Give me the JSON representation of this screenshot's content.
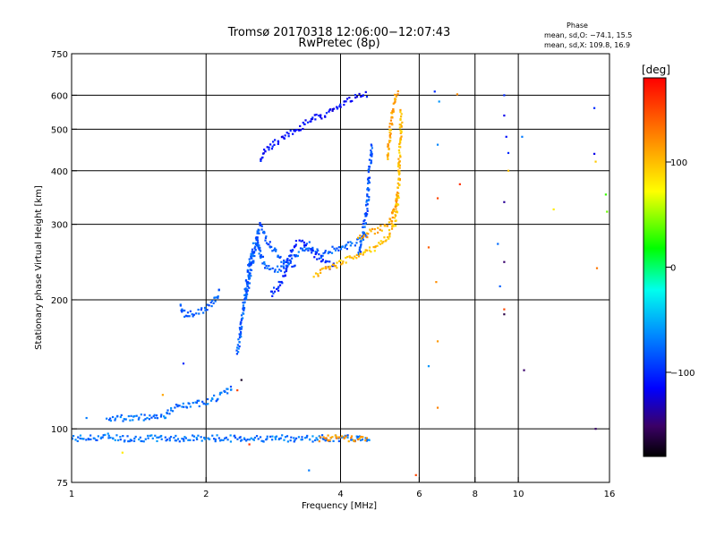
{
  "chart_data": {
    "type": "scatter",
    "title": "Tromsø 20170318 12:06:00−12:07:43",
    "subtitle": "RwPretec (8p)",
    "phase_info": {
      "heading": "Phase",
      "line_o": "mean, sd,O: −74.1, 15.5",
      "line_x": "mean, sd,X: 109.8, 16.9"
    },
    "xlabel": "Frequency [MHz]",
    "ylabel": "Stationary phase Virtual Height [km]",
    "x_scale": "log",
    "y_scale": "log",
    "xlim": [
      1,
      16
    ],
    "ylim": [
      75,
      750
    ],
    "x_ticks": [
      1,
      2,
      4,
      6,
      8,
      10,
      16
    ],
    "x_tick_labels": [
      "1",
      "2",
      "4",
      "6",
      "8",
      "10",
      "16"
    ],
    "x_grid": [
      2,
      4,
      6,
      8,
      10
    ],
    "y_ticks": [
      75,
      100,
      200,
      300,
      400,
      500,
      600,
      750
    ],
    "y_tick_labels": [
      "75",
      "100",
      "200",
      "300",
      "400",
      "500",
      "600",
      "750"
    ],
    "y_grid": [
      100,
      200,
      300,
      400,
      500,
      600
    ],
    "colorbar": {
      "label": "[deg]",
      "range": [
        -180,
        180
      ],
      "ticks": [
        100,
        0,
        -100
      ],
      "tick_labels": [
        "100",
        "0",
        "−100"
      ],
      "colormap": "rainbow"
    },
    "traces": [
      {
        "kind": "trace",
        "phase": -72,
        "x": [
          1.0,
          1.1,
          1.2,
          1.3,
          1.4,
          1.5,
          1.6,
          1.7,
          1.8,
          1.9,
          2.0,
          2.2,
          2.4,
          2.6,
          2.8,
          3.0,
          3.2,
          3.4,
          3.6,
          3.8,
          4.0,
          4.2,
          4.4,
          4.6,
          4.7
        ],
        "y": [
          95,
          95,
          96,
          95,
          95,
          95,
          95,
          95,
          95,
          95,
          95,
          95,
          95,
          95,
          95,
          95,
          95,
          95,
          95,
          95,
          95,
          95,
          95,
          95,
          95
        ]
      },
      {
        "kind": "trace",
        "phase": -74,
        "x": [
          1.2,
          1.3,
          1.4,
          1.5,
          1.6,
          1.65,
          1.7,
          1.8,
          1.9,
          2.0,
          2.1,
          2.2,
          2.3
        ],
        "y": [
          106,
          106,
          106,
          107,
          107,
          109,
          112,
          113,
          114,
          116,
          118,
          121,
          126
        ]
      },
      {
        "kind": "trace",
        "phase": -80,
        "x": [
          2.35,
          2.4,
          2.45,
          2.5,
          2.55,
          2.6,
          2.65,
          2.7,
          2.8,
          2.9,
          3.0,
          3.1,
          3.2,
          3.3,
          3.4,
          3.5,
          3.6,
          3.7,
          3.8,
          3.9,
          4.0,
          4.1,
          4.2,
          4.3,
          4.4,
          4.5,
          4.6
        ],
        "y": [
          150,
          175,
          205,
          240,
          265,
          278,
          255,
          242,
          236,
          235,
          240,
          248,
          255,
          262,
          268,
          262,
          255,
          258,
          262,
          260,
          262,
          265,
          270,
          272,
          275,
          280,
          285
        ]
      },
      {
        "kind": "trace",
        "phase": -85,
        "x": [
          2.45,
          2.5,
          2.55,
          2.6,
          2.65,
          2.7,
          2.8,
          2.9,
          3.0,
          3.1,
          3.2
        ],
        "y": [
          200,
          225,
          250,
          280,
          300,
          285,
          265,
          255,
          245,
          240,
          238
        ]
      },
      {
        "kind": "trace",
        "phase": -100,
        "x": [
          2.8,
          2.9,
          3.0,
          3.05,
          3.1,
          3.2,
          3.3,
          3.4,
          3.5,
          3.6,
          3.7,
          3.8,
          3.9
        ],
        "y": [
          205,
          215,
          230,
          245,
          260,
          270,
          272,
          265,
          255,
          250,
          245,
          240,
          240
        ]
      },
      {
        "kind": "trace",
        "phase": -112,
        "x": [
          2.65,
          2.7,
          2.8,
          2.9,
          3.0,
          3.1,
          3.2,
          3.3,
          3.4,
          3.5,
          3.6,
          3.7,
          3.8,
          3.9,
          4.0,
          4.1,
          4.2,
          4.3,
          4.4,
          4.5,
          4.6
        ],
        "y": [
          420,
          440,
          455,
          470,
          480,
          490,
          500,
          510,
          520,
          530,
          535,
          540,
          550,
          560,
          565,
          575,
          585,
          590,
          595,
          600,
          605
        ]
      },
      {
        "kind": "trace",
        "phase": -84,
        "x": [
          4.4,
          4.45,
          4.5,
          4.55,
          4.6,
          4.62,
          4.65,
          4.68,
          4.7
        ],
        "y": [
          255,
          270,
          290,
          310,
          340,
          370,
          400,
          430,
          460
        ]
      },
      {
        "kind": "trace",
        "phase": -82,
        "x": [
          1.75,
          1.8,
          1.85,
          1.9,
          2.0,
          2.1,
          2.15
        ],
        "y": [
          195,
          185,
          185,
          187,
          190,
          200,
          210
        ]
      },
      {
        "kind": "trace",
        "phase": 100,
        "x": [
          3.5,
          3.7,
          3.9,
          4.1,
          4.3,
          4.5,
          4.7,
          4.9,
          5.1,
          5.2,
          5.3,
          5.35,
          5.4,
          5.42,
          5.45,
          5.47
        ],
        "y": [
          228,
          235,
          240,
          248,
          252,
          258,
          262,
          270,
          280,
          292,
          305,
          330,
          370,
          420,
          480,
          550
        ]
      },
      {
        "kind": "trace",
        "phase": 110,
        "x": [
          4.4,
          4.6,
          4.8,
          5.0,
          5.1,
          5.2,
          5.3,
          5.35
        ],
        "y": [
          280,
          285,
          290,
          295,
          300,
          310,
          330,
          360
        ]
      },
      {
        "kind": "trace",
        "phase": 115,
        "x": [
          3.6,
          3.7,
          3.8,
          3.9,
          4.0,
          4.1,
          4.2,
          4.3,
          4.4,
          4.5,
          4.6
        ],
        "y": [
          95,
          95,
          95,
          95,
          95,
          95,
          95,
          95,
          95,
          95,
          95
        ]
      },
      {
        "kind": "trace",
        "phase": 110,
        "x": [
          5.1,
          5.15,
          5.2,
          5.25,
          5.3,
          5.35,
          5.4
        ],
        "y": [
          430,
          470,
          520,
          560,
          590,
          610,
          620
        ]
      }
    ],
    "points": [
      {
        "x": 1.08,
        "y": 106,
        "phase": -70
      },
      {
        "x": 1.3,
        "y": 88,
        "phase": 80
      },
      {
        "x": 1.6,
        "y": 120,
        "phase": 110
      },
      {
        "x": 1.78,
        "y": 142,
        "phase": -100
      },
      {
        "x": 2.35,
        "y": 123,
        "phase": 150
      },
      {
        "x": 2.4,
        "y": 130,
        "phase": -170
      },
      {
        "x": 2.5,
        "y": 92,
        "phase": 160
      },
      {
        "x": 3.4,
        "y": 80,
        "phase": -70
      },
      {
        "x": 5.9,
        "y": 78,
        "phase": 150
      },
      {
        "x": 6.3,
        "y": 265,
        "phase": 140
      },
      {
        "x": 6.3,
        "y": 140,
        "phase": -60
      },
      {
        "x": 6.5,
        "y": 612,
        "phase": -100
      },
      {
        "x": 6.55,
        "y": 220,
        "phase": 120
      },
      {
        "x": 6.6,
        "y": 460,
        "phase": -65
      },
      {
        "x": 6.65,
        "y": 580,
        "phase": -60
      },
      {
        "x": 6.6,
        "y": 345,
        "phase": 150
      },
      {
        "x": 6.6,
        "y": 160,
        "phase": 115
      },
      {
        "x": 6.6,
        "y": 112,
        "phase": 125
      },
      {
        "x": 7.3,
        "y": 603,
        "phase": 120
      },
      {
        "x": 7.4,
        "y": 372,
        "phase": 160
      },
      {
        "x": 9.0,
        "y": 270,
        "phase": -75
      },
      {
        "x": 9.1,
        "y": 215,
        "phase": -80
      },
      {
        "x": 9.3,
        "y": 600,
        "phase": -100
      },
      {
        "x": 9.3,
        "y": 538,
        "phase": -120
      },
      {
        "x": 9.3,
        "y": 338,
        "phase": -140
      },
      {
        "x": 9.3,
        "y": 245,
        "phase": -150
      },
      {
        "x": 9.3,
        "y": 190,
        "phase": 150
      },
      {
        "x": 9.3,
        "y": 185,
        "phase": -160
      },
      {
        "x": 9.4,
        "y": 480,
        "phase": -110
      },
      {
        "x": 9.5,
        "y": 400,
        "phase": 100
      },
      {
        "x": 9.5,
        "y": 440,
        "phase": -100
      },
      {
        "x": 10.2,
        "y": 480,
        "phase": -70
      },
      {
        "x": 10.3,
        "y": 137,
        "phase": -150
      },
      {
        "x": 12.0,
        "y": 325,
        "phase": 80
      },
      {
        "x": 14.8,
        "y": 560,
        "phase": -100
      },
      {
        "x": 14.8,
        "y": 438,
        "phase": -120
      },
      {
        "x": 14.9,
        "y": 420,
        "phase": 95
      },
      {
        "x": 15.0,
        "y": 237,
        "phase": 130
      },
      {
        "x": 14.9,
        "y": 100,
        "phase": -150
      },
      {
        "x": 15.7,
        "y": 352,
        "phase": 30
      },
      {
        "x": 15.8,
        "y": 321,
        "phase": 40
      }
    ]
  }
}
